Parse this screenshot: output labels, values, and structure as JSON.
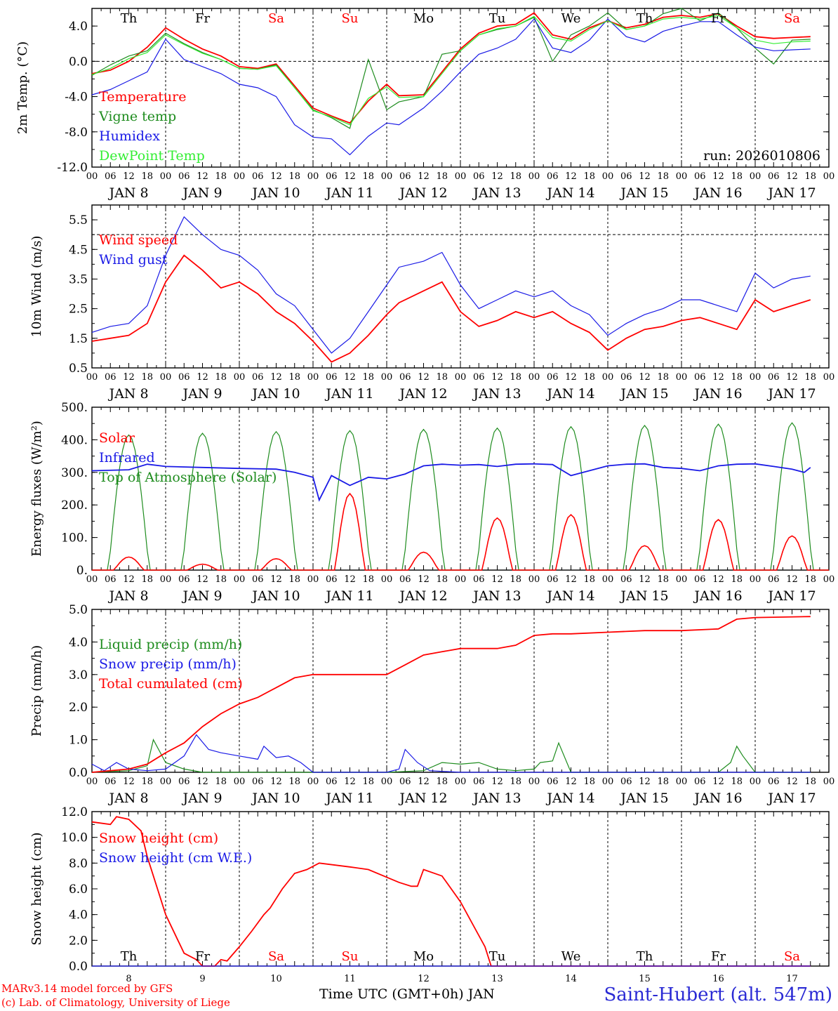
{
  "footer": {
    "credit1": "MARv3.14 model forced by GFS",
    "credit2": "(c) Lab. of Climatology, University of Liege",
    "xlabel": "Time UTC (GMT+0h) JAN",
    "station": "Saint-Hubert (alt. 547m)"
  },
  "colors": {
    "red": "#ff0000",
    "green": "#1e8c1e",
    "blue": "#1a1ae6",
    "lightgreen": "#33ee33",
    "black": "#000000"
  },
  "chart_data": [
    {
      "type": "line",
      "ylabel": "2m Temp. (°C)",
      "ylim": [
        -12,
        6
      ],
      "yticks": [
        "-12.0",
        "-8.0",
        "-4.0",
        "0.0",
        "4.0"
      ],
      "ytick_values": [
        -12,
        -8,
        -4,
        0,
        4
      ],
      "weekdays": [
        "Th",
        "Fr",
        "Sa",
        "Su",
        "Mo",
        "Tu",
        "We",
        "Th",
        "Fr",
        "Sa"
      ],
      "run": "run: 2026010806",
      "hours": [
        "00",
        "06",
        "12",
        "18"
      ],
      "days": [
        "JAN  8",
        "JAN  9",
        "JAN 10",
        "JAN 11",
        "JAN 12",
        "JAN 13",
        "JAN 14",
        "JAN 15",
        "JAN 16",
        "JAN 17"
      ],
      "legend": [
        "Temperature",
        "Vigne temp",
        "Humidex",
        "DewPoint Temp"
      ],
      "series": [
        {
          "name": "Temperature",
          "color": "#ff0000",
          "x": [
            0,
            6,
            12,
            18,
            24,
            30,
            36,
            42,
            48,
            54,
            60,
            66,
            72,
            78,
            84,
            90,
            96,
            100,
            108,
            114,
            120,
            126,
            132,
            138,
            144,
            150,
            156,
            162,
            168,
            174,
            180,
            186,
            192,
            198,
            204,
            210,
            216,
            222,
            228,
            234
          ],
          "y": [
            -1.4,
            -1.0,
            0,
            1.6,
            3.8,
            2.5,
            1.4,
            0.6,
            -0.6,
            -0.8,
            -0.3,
            -2.8,
            -5.3,
            -6.2,
            -7.0,
            -4.5,
            -2.6,
            -3.9,
            -3.8,
            -1.2,
            1.4,
            3.2,
            4.0,
            4.2,
            5.5,
            3.0,
            2.5,
            3.8,
            4.6,
            3.8,
            4.2,
            5.0,
            5.2,
            5.0,
            5.4,
            4.0,
            2.8,
            2.6,
            2.7,
            2.8
          ]
        },
        {
          "name": "Vigne temp",
          "color": "#1e8c1e",
          "x": [
            0,
            6,
            12,
            18,
            24,
            30,
            36,
            42,
            48,
            54,
            60,
            66,
            72,
            78,
            84,
            90,
            96,
            100,
            108,
            114,
            120,
            126,
            132,
            138,
            144,
            150,
            156,
            162,
            168,
            174,
            180,
            186,
            192,
            198,
            204,
            210,
            216,
            222,
            228,
            234
          ],
          "y": [
            -1.6,
            -0.4,
            0.6,
            1.2,
            3.2,
            2.0,
            1.0,
            0.2,
            -0.8,
            -0.9,
            -0.4,
            -3.0,
            -5.5,
            -6.4,
            -7.6,
            0.2,
            -5.5,
            -4.6,
            -4.0,
            0.8,
            1.2,
            3.0,
            3.6,
            4.0,
            5.0,
            0,
            3.0,
            4.0,
            5.5,
            3.6,
            4.0,
            5.4,
            6.0,
            4.6,
            5.5,
            3.8,
            1.5,
            -0.3,
            2.4,
            2.5
          ]
        },
        {
          "name": "Humidex",
          "color": "#1a1ae6",
          "x": [
            0,
            6,
            12,
            18,
            24,
            30,
            36,
            42,
            48,
            54,
            60,
            66,
            72,
            78,
            84,
            90,
            96,
            100,
            108,
            114,
            120,
            126,
            132,
            138,
            144,
            150,
            156,
            162,
            168,
            174,
            180,
            186,
            192,
            198,
            204,
            210,
            216,
            222,
            228,
            234
          ],
          "y": [
            -3.8,
            -3.2,
            -2.2,
            -1.2,
            2.5,
            0.2,
            -0.6,
            -1.4,
            -2.6,
            -3.0,
            -4.0,
            -7.2,
            -8.6,
            -8.8,
            -10.6,
            -8.5,
            -7.0,
            -7.2,
            -5.3,
            -3.4,
            -1.2,
            0.8,
            1.5,
            2.5,
            4.8,
            1.5,
            1.0,
            2.4,
            4.8,
            2.8,
            2.2,
            3.4,
            4.0,
            4.5,
            4.5,
            3.0,
            1.6,
            1.2,
            1.3,
            1.4
          ]
        },
        {
          "name": "DewPoint Temp",
          "color": "#33ee33",
          "x": [
            0,
            6,
            12,
            18,
            24,
            30,
            36,
            42,
            48,
            54,
            60,
            66,
            72,
            78,
            84,
            90,
            96,
            100,
            108,
            114,
            120,
            126,
            132,
            138,
            144,
            150,
            156,
            162,
            168,
            174,
            180,
            186,
            192,
            198,
            204,
            210,
            216,
            222,
            228,
            234
          ],
          "y": [
            -1.5,
            -0.8,
            0.3,
            1.0,
            3.0,
            1.9,
            0.9,
            0.2,
            -0.8,
            -0.9,
            -0.5,
            -3.0,
            -5.6,
            -6.3,
            -7.2,
            -4.2,
            -2.9,
            -4.1,
            -4.0,
            -1.4,
            1.2,
            3.0,
            3.7,
            4.0,
            5.1,
            2.7,
            2.3,
            3.6,
            4.6,
            3.6,
            4.0,
            4.8,
            5.0,
            4.8,
            5.2,
            3.8,
            2.4,
            2.0,
            2.2,
            2.3
          ]
        }
      ]
    },
    {
      "type": "line",
      "ylabel": "10m Wind (m/s)",
      "ylim": [
        0.5,
        6.0
      ],
      "yticks": [
        "0.5",
        "1.5",
        "2.5",
        "3.5",
        "4.5",
        "5.5"
      ],
      "ytick_values": [
        0.5,
        1.5,
        2.5,
        3.5,
        4.5,
        5.5
      ],
      "hours": [
        "00",
        "06",
        "12",
        "18"
      ],
      "days": [
        "JAN  8",
        "JAN  9",
        "JAN 10",
        "JAN 11",
        "JAN 12",
        "JAN 13",
        "JAN 14",
        "JAN 15",
        "JAN 16",
        "JAN 17"
      ],
      "legend": [
        "Wind speed",
        "Wind gust"
      ],
      "series": [
        {
          "name": "Wind speed",
          "color": "#ff0000",
          "x": [
            0,
            6,
            12,
            18,
            24,
            30,
            36,
            42,
            48,
            54,
            60,
            66,
            72,
            78,
            84,
            90,
            96,
            100,
            108,
            114,
            120,
            126,
            132,
            138,
            144,
            150,
            156,
            162,
            168,
            174,
            180,
            186,
            192,
            198,
            204,
            210,
            216,
            222,
            228,
            234
          ],
          "y": [
            1.4,
            1.5,
            1.6,
            2.0,
            3.4,
            4.3,
            3.8,
            3.2,
            3.4,
            3.0,
            2.4,
            2.0,
            1.4,
            0.7,
            1.0,
            1.6,
            2.3,
            2.7,
            3.1,
            3.4,
            2.4,
            1.9,
            2.1,
            2.4,
            2.2,
            2.4,
            2.0,
            1.7,
            1.1,
            1.5,
            1.8,
            1.9,
            2.1,
            2.2,
            2.0,
            1.8,
            2.8,
            2.4,
            2.6,
            2.8
          ]
        },
        {
          "name": "Wind gust",
          "color": "#1a1ae6",
          "x": [
            0,
            6,
            12,
            18,
            24,
            30,
            36,
            42,
            48,
            54,
            60,
            66,
            72,
            78,
            84,
            90,
            96,
            100,
            108,
            114,
            120,
            126,
            132,
            138,
            144,
            150,
            156,
            162,
            168,
            174,
            180,
            186,
            192,
            198,
            204,
            210,
            216,
            222,
            228,
            234
          ],
          "y": [
            1.7,
            1.9,
            2.0,
            2.6,
            4.3,
            5.6,
            5.0,
            4.5,
            4.3,
            3.8,
            3.0,
            2.6,
            1.8,
            1.0,
            1.5,
            2.4,
            3.3,
            3.9,
            4.1,
            4.4,
            3.3,
            2.5,
            2.8,
            3.1,
            2.9,
            3.1,
            2.6,
            2.3,
            1.6,
            2.0,
            2.3,
            2.5,
            2.8,
            2.8,
            2.6,
            2.4,
            3.7,
            3.2,
            3.5,
            3.6
          ]
        }
      ]
    },
    {
      "type": "line",
      "ylabel": "Energy fluxes (W/m²)",
      "ylim": [
        0,
        500
      ],
      "yticks": [
        "0.",
        "100.",
        "200.",
        "300.",
        "400.",
        "500."
      ],
      "ytick_values": [
        0,
        100,
        200,
        300,
        400,
        500
      ],
      "hours": [
        "00",
        "06",
        "12",
        "18"
      ],
      "days": [
        "JAN  8",
        "JAN  9",
        "JAN 10",
        "JAN 11",
        "JAN 12",
        "JAN 13",
        "JAN 14",
        "JAN 15",
        "JAN 16",
        "JAN 17"
      ],
      "legend": [
        "Solar",
        "Infrared",
        "Top of Atmosphere (Solar)"
      ],
      "toa_peaks": [
        415,
        420,
        425,
        428,
        432,
        436,
        440,
        444,
        448,
        452
      ],
      "solar_peaks": [
        40,
        18,
        35,
        235,
        55,
        160,
        170,
        75,
        155,
        105
      ],
      "series": [
        {
          "name": "Infrared",
          "color": "#1a1ae6",
          "x": [
            0,
            12,
            18,
            24,
            36,
            48,
            60,
            66,
            72,
            74,
            78,
            84,
            90,
            96,
            102,
            108,
            114,
            120,
            126,
            132,
            138,
            144,
            150,
            156,
            160,
            168,
            174,
            180,
            186,
            192,
            198,
            204,
            210,
            216,
            222,
            228,
            232,
            234
          ],
          "y": [
            305,
            308,
            325,
            318,
            315,
            312,
            310,
            300,
            285,
            215,
            290,
            260,
            285,
            280,
            295,
            320,
            325,
            322,
            324,
            318,
            325,
            326,
            324,
            290,
            300,
            320,
            325,
            326,
            315,
            312,
            305,
            320,
            325,
            326,
            318,
            310,
            300,
            315
          ]
        }
      ]
    },
    {
      "type": "line",
      "ylabel": "Precip (mm/h)",
      "ylim": [
        0,
        5
      ],
      "yticks": [
        "0.0",
        "1.0",
        "2.0",
        "3.0",
        "4.0",
        "5.0"
      ],
      "ytick_values": [
        0,
        1,
        2,
        3,
        4,
        5
      ],
      "hours": [
        "00",
        "06",
        "12",
        "18"
      ],
      "days": [
        "JAN  8",
        "JAN  9",
        "JAN 10",
        "JAN 11",
        "JAN 12",
        "JAN 13",
        "JAN 14",
        "JAN 15",
        "JAN 16",
        "JAN 17"
      ],
      "legend": [
        "Liquid precip (mm/h)",
        "Snow precip (mm/h)",
        "Total cumulated (cm)"
      ],
      "series": [
        {
          "name": "Liquid precip (mm/h)",
          "color": "#1e8c1e",
          "x": [
            0,
            12,
            18,
            20,
            24,
            30,
            36,
            48,
            96,
            108,
            114,
            120,
            126,
            132,
            138,
            144,
            146,
            150,
            152,
            156,
            168,
            192,
            204,
            208,
            210,
            212,
            216,
            234
          ],
          "y": [
            0,
            0.05,
            0.2,
            1.0,
            0.3,
            0.1,
            0,
            0,
            0,
            0.05,
            0.3,
            0.25,
            0.3,
            0.1,
            0.05,
            0.1,
            0.3,
            0.35,
            0.9,
            0,
            0,
            0,
            0,
            0.3,
            0.8,
            0.5,
            0,
            0
          ]
        },
        {
          "name": "Snow precip (mm/h)",
          "color": "#1a1ae6",
          "x": [
            0,
            4,
            8,
            12,
            18,
            24,
            30,
            34,
            38,
            42,
            48,
            54,
            56,
            60,
            64,
            68,
            72,
            78,
            96,
            100,
            102,
            106,
            110,
            120,
            234
          ],
          "y": [
            0.25,
            0.05,
            0.3,
            0.1,
            0.05,
            0.1,
            0.5,
            1.15,
            0.7,
            0.6,
            0.5,
            0.4,
            0.8,
            0.45,
            0.5,
            0.3,
            0,
            0,
            0,
            0.1,
            0.7,
            0.3,
            0.05,
            0,
            0
          ]
        },
        {
          "name": "Total cumulated (cm)",
          "color": "#ff0000",
          "x": [
            0,
            12,
            18,
            24,
            30,
            36,
            42,
            48,
            54,
            60,
            66,
            72,
            78,
            84,
            90,
            96,
            102,
            108,
            114,
            120,
            132,
            138,
            144,
            150,
            156,
            168,
            180,
            192,
            204,
            210,
            216,
            234
          ],
          "y": [
            0,
            0.1,
            0.25,
            0.6,
            0.9,
            1.4,
            1.8,
            2.1,
            2.3,
            2.6,
            2.9,
            3.0,
            3.0,
            3.0,
            3.0,
            3.0,
            3.3,
            3.6,
            3.7,
            3.8,
            3.8,
            3.9,
            4.2,
            4.25,
            4.25,
            4.3,
            4.35,
            4.35,
            4.4,
            4.7,
            4.75,
            4.78
          ]
        }
      ]
    },
    {
      "type": "line",
      "ylabel": "Snow height (cm)",
      "ylim": [
        0,
        12
      ],
      "yticks": [
        "0.0",
        "2.0",
        "4.0",
        "6.0",
        "8.0",
        "10.0",
        "12.0"
      ],
      "ytick_values": [
        0,
        2,
        4,
        6,
        8,
        10,
        12
      ],
      "weekdays": [
        "Th",
        "Fr",
        "Sa",
        "Su",
        "Mo",
        "Tu",
        "We",
        "Th",
        "Fr",
        "Sa"
      ],
      "days": [
        "8",
        "9",
        "10",
        "11",
        "12",
        "13",
        "14",
        "15",
        "16",
        "17"
      ],
      "legend": [
        "Snow height (cm)",
        "Snow height (cm W.E.)"
      ],
      "series": [
        {
          "name": "Snow height (cm)",
          "color": "#ff0000",
          "x": [
            0,
            6,
            8,
            12,
            16,
            18,
            22,
            24,
            28,
            30,
            34,
            36,
            40,
            42,
            44,
            48,
            52,
            56,
            58,
            62,
            66,
            70,
            74,
            84,
            90,
            100,
            104,
            106,
            108,
            114,
            120,
            128,
            130,
            234
          ],
          "y": [
            11.2,
            11.0,
            11.6,
            11.4,
            10.5,
            8.5,
            5.5,
            4.0,
            2.0,
            1.0,
            0.5,
            0,
            0,
            0.5,
            0.4,
            1.5,
            2.7,
            4.0,
            4.5,
            6.0,
            7.2,
            7.5,
            8.0,
            7.7,
            7.5,
            6.5,
            6.2,
            6.2,
            7.5,
            7.0,
            5.0,
            1.5,
            0,
            0
          ]
        },
        {
          "name": "Snow height (cm W.E.)",
          "color": "#1a1ae6",
          "x": [
            0,
            234
          ],
          "y": [
            0,
            0
          ]
        }
      ]
    }
  ]
}
